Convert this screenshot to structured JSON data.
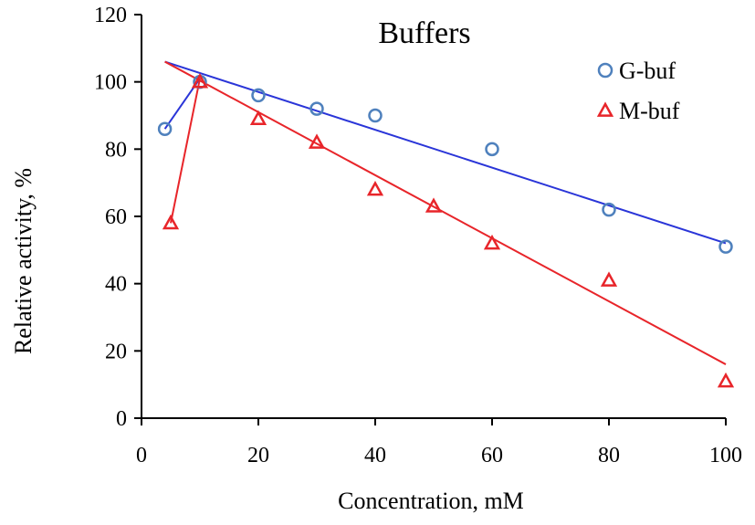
{
  "chart_data": {
    "type": "scatter",
    "title": "Buffers",
    "xlabel": "Concentration, mM",
    "ylabel": "Relative activity, %",
    "xlim": [
      0,
      100
    ],
    "ylim": [
      0,
      120
    ],
    "xticks": [
      0,
      20,
      40,
      60,
      80,
      100
    ],
    "yticks": [
      0,
      20,
      40,
      60,
      80,
      100,
      120
    ],
    "grid": false,
    "legend_position": "top-right",
    "series": [
      {
        "name": "G-buf",
        "marker": "circle",
        "color": "#4f81bd",
        "line_color": "#2a35d8",
        "points": [
          {
            "x": 4,
            "y": 86
          },
          {
            "x": 10,
            "y": 100
          },
          {
            "x": 20,
            "y": 96
          },
          {
            "x": 30,
            "y": 92
          },
          {
            "x": 40,
            "y": 90
          },
          {
            "x": 60,
            "y": 80
          },
          {
            "x": 80,
            "y": 62
          },
          {
            "x": 100,
            "y": 51
          }
        ],
        "lines": [
          [
            {
              "x": 4,
              "y": 86
            },
            {
              "x": 10,
              "y": 101
            }
          ],
          [
            {
              "x": 4,
              "y": 106
            },
            {
              "x": 100,
              "y": 52
            }
          ]
        ]
      },
      {
        "name": "M-buf",
        "marker": "triangle",
        "color": "#e8252a",
        "line_color": "#e8252a",
        "points": [
          {
            "x": 5,
            "y": 58
          },
          {
            "x": 10,
            "y": 100
          },
          {
            "x": 20,
            "y": 89
          },
          {
            "x": 30,
            "y": 82
          },
          {
            "x": 40,
            "y": 68
          },
          {
            "x": 50,
            "y": 63
          },
          {
            "x": 60,
            "y": 52
          },
          {
            "x": 80,
            "y": 41
          },
          {
            "x": 100,
            "y": 11
          }
        ],
        "lines": [
          [
            {
              "x": 5,
              "y": 58
            },
            {
              "x": 10,
              "y": 101
            }
          ],
          [
            {
              "x": 4,
              "y": 106
            },
            {
              "x": 100,
              "y": 16
            }
          ]
        ]
      }
    ]
  }
}
